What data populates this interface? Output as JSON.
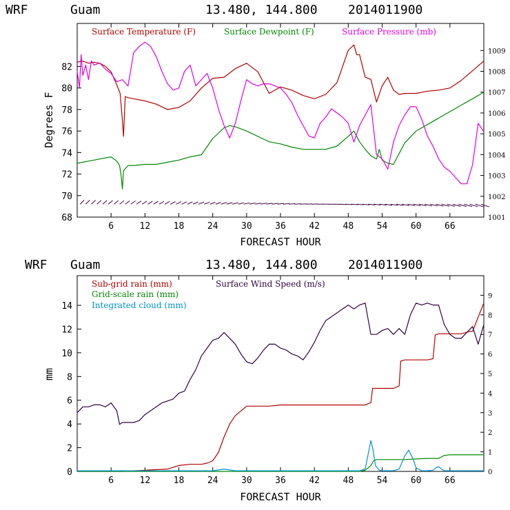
{
  "chart_data": [
    {
      "type": "line",
      "header": {
        "model": "WRF",
        "location": "Guam",
        "coords": "13.480, 144.800",
        "init": "2014011900"
      },
      "xlabel": "FORECAST HOUR",
      "ylabel": "Degrees F",
      "xlim": [
        0,
        72
      ],
      "ylim": [
        68,
        86
      ],
      "y2lim": [
        1001,
        1010.3
      ],
      "x_ticks": [
        6,
        12,
        18,
        24,
        30,
        36,
        42,
        48,
        54,
        60,
        66
      ],
      "x_tick_labels": [
        "6",
        "12",
        "18",
        "24",
        "30",
        "36",
        "42",
        "48",
        "54",
        "60",
        "66"
      ],
      "y_ticks": [
        68,
        70,
        72,
        74,
        76,
        78,
        80,
        82
      ],
      "y_tick_labels": [
        "68",
        "70",
        "72",
        "74",
        "76",
        "78",
        "80",
        "82"
      ],
      "y2_ticks": [
        1001,
        1002,
        1003,
        1004,
        1005,
        1006,
        1007,
        1008,
        1009
      ],
      "y2_tick_labels": [
        "1001",
        "1002",
        "1003",
        "1004",
        "1005",
        "1006",
        "1007",
        "1008",
        "1009"
      ],
      "series": [
        {
          "name": "Surface Temperature (F)",
          "color": "#b00000",
          "axis": "left",
          "x": [
            0,
            1,
            2,
            3,
            4,
            5,
            6,
            7,
            7.6,
            8,
            8.2,
            8.5,
            9,
            10,
            12,
            14,
            16,
            18,
            20,
            22,
            24,
            26,
            28,
            30,
            32,
            34,
            36,
            38,
            40,
            42,
            44,
            46,
            48,
            49,
            49.5,
            50,
            51,
            52,
            53,
            54,
            55,
            56,
            57,
            58,
            60,
            62,
            64,
            66,
            68,
            70,
            72
          ],
          "y": [
            82.4,
            82.5,
            82.3,
            82.4,
            82.3,
            82.0,
            81.5,
            80.3,
            79.5,
            77.0,
            75.5,
            79.2,
            79.1,
            79.0,
            78.8,
            78.5,
            78.0,
            78.2,
            78.8,
            80.0,
            80.9,
            81.0,
            81.8,
            82.3,
            81.5,
            79.5,
            80.1,
            79.8,
            79.3,
            79.0,
            79.4,
            80.5,
            83.5,
            84.0,
            83.1,
            83.1,
            81.0,
            80.8,
            78.7,
            80.2,
            81.0,
            79.8,
            79.4,
            79.5,
            79.5,
            79.7,
            79.8,
            80.0,
            80.7,
            81.6,
            82.5
          ]
        },
        {
          "name": "Surface Dewpoint (F)",
          "color": "#008800",
          "axis": "left",
          "x": [
            0,
            2,
            4,
            6,
            7,
            7.5,
            7.8,
            8,
            8.2,
            8.5,
            9,
            10,
            12,
            14,
            16,
            18,
            20,
            22,
            24,
            26,
            27,
            28,
            30,
            32,
            34,
            36,
            38,
            40,
            42,
            44,
            46,
            48,
            49,
            50,
            51,
            52,
            53,
            53.5,
            54,
            55,
            56,
            58,
            60,
            62,
            64,
            66,
            68,
            70,
            72
          ],
          "y": [
            73.0,
            73.2,
            73.4,
            73.6,
            73.2,
            72.8,
            71.8,
            70.6,
            72.3,
            72.5,
            72.8,
            72.8,
            72.9,
            72.9,
            73.1,
            73.3,
            73.6,
            73.8,
            75.3,
            76.3,
            76.5,
            76.4,
            76.0,
            75.5,
            75.0,
            74.8,
            74.5,
            74.3,
            74.3,
            74.3,
            74.6,
            75.5,
            76.0,
            75.0,
            74.3,
            73.7,
            73.4,
            74.3,
            73.3,
            73.0,
            72.9,
            74.9,
            76.0,
            76.6,
            77.2,
            77.8,
            78.4,
            79.0,
            79.6
          ]
        },
        {
          "name": "Surface Pressure (mb)",
          "color": "#e000e0",
          "axis": "right",
          "x": [
            0,
            0.4,
            0.7,
            1,
            1.5,
            2,
            2.5,
            3,
            4,
            5,
            6,
            7,
            8,
            9,
            10,
            11,
            12,
            13,
            14,
            15,
            16,
            17,
            18,
            19,
            20,
            21,
            22,
            23,
            24,
            25,
            26,
            27,
            28,
            29,
            30,
            31,
            32,
            33,
            34,
            35,
            36,
            37,
            38,
            39,
            40,
            41,
            42,
            43,
            44,
            45,
            46,
            47,
            48,
            49,
            50,
            51,
            52,
            53,
            54,
            55,
            56,
            57,
            58,
            59,
            60,
            61,
            62,
            63,
            64,
            65,
            66,
            67,
            68,
            69,
            70,
            71,
            72
          ],
          "y": [
            1008.0,
            1007.2,
            1008.8,
            1007.8,
            1008.3,
            1007.6,
            1008.5,
            1008.3,
            1008.4,
            1008.1,
            1007.9,
            1007.5,
            1007.6,
            1007.3,
            1008.9,
            1009.2,
            1009.4,
            1009.2,
            1008.7,
            1008.0,
            1007.4,
            1007.1,
            1007.2,
            1008.0,
            1008.3,
            1007.3,
            1007.6,
            1007.9,
            1007.2,
            1006.2,
            1005.4,
            1004.8,
            1005.5,
            1006.6,
            1007.6,
            1007.4,
            1007.3,
            1007.4,
            1007.4,
            1007.3,
            1007.2,
            1006.9,
            1006.5,
            1005.9,
            1005.4,
            1004.9,
            1004.8,
            1005.5,
            1005.8,
            1006.2,
            1006.0,
            1005.8,
            1005.5,
            1004.6,
            1005.4,
            1005.9,
            1006.4,
            1004.0,
            1003.8,
            1003.3,
            1004.6,
            1005.4,
            1005.9,
            1006.3,
            1006.3,
            1005.7,
            1004.9,
            1004.4,
            1003.8,
            1003.4,
            1003.2,
            1002.9,
            1002.6,
            1002.6,
            1003.5,
            1005.5,
            1005.1
          ]
        }
      ],
      "wind_barb_strip": {
        "y_value": 69.2,
        "x_start": 0.5,
        "x_end": 72,
        "color": "#400040"
      },
      "legend_placement": "top, inside plot"
    },
    {
      "type": "line",
      "header": {
        "model": "WRF",
        "location": "Guam",
        "coords": "13.480, 144.800",
        "init": "2014011900"
      },
      "xlabel": "FORECAST HOUR",
      "ylabel": "mm",
      "xlim": [
        0,
        72
      ],
      "ylim": [
        0,
        16.5
      ],
      "y2lim": [
        0,
        10
      ],
      "x_ticks": [
        6,
        12,
        18,
        24,
        30,
        36,
        42,
        48,
        54,
        60,
        66
      ],
      "x_tick_labels": [
        "6",
        "12",
        "18",
        "24",
        "30",
        "36",
        "42",
        "48",
        "54",
        "60",
        "66"
      ],
      "y_ticks": [
        0,
        2,
        4,
        6,
        8,
        10,
        12,
        14
      ],
      "y_tick_labels": [
        "0",
        "2",
        "4",
        "6",
        "8",
        "10",
        "12",
        "14"
      ],
      "y2_ticks": [
        0,
        1,
        2,
        3,
        4,
        5,
        6,
        7,
        8,
        9
      ],
      "y2_tick_labels": [
        "0",
        "1",
        "2",
        "3",
        "4",
        "5",
        "6",
        "7",
        "8",
        "9"
      ],
      "series": [
        {
          "name": "Sub-grid rain (mm)",
          "color": "#b00000",
          "axis": "left",
          "x": [
            0,
            8,
            10,
            12,
            14,
            16,
            18,
            20,
            22,
            23,
            24,
            25,
            26,
            27,
            28,
            29,
            30,
            32,
            34,
            36,
            38,
            40,
            42,
            44,
            46,
            48,
            50,
            51,
            52,
            52.3,
            54,
            56,
            57,
            57.3,
            58,
            60,
            62,
            63,
            63.4,
            64,
            66,
            68,
            69.5,
            70,
            71,
            72
          ],
          "y": [
            0,
            0,
            0.05,
            0.1,
            0.15,
            0.2,
            0.5,
            0.6,
            0.6,
            0.7,
            0.9,
            1.6,
            2.9,
            4.0,
            4.7,
            5.1,
            5.5,
            5.5,
            5.5,
            5.6,
            5.6,
            5.6,
            5.6,
            5.6,
            5.6,
            5.6,
            5.6,
            5.6,
            5.8,
            7.0,
            7.0,
            7.0,
            7.2,
            9.3,
            9.4,
            9.4,
            9.4,
            9.5,
            11.5,
            11.6,
            11.6,
            11.6,
            11.8,
            11.8,
            13.0,
            14.2
          ]
        },
        {
          "name": "Grid-scale rain (mm)",
          "color": "#008800",
          "axis": "left",
          "x": [
            0,
            50,
            51,
            52,
            52.5,
            53,
            54,
            56,
            58,
            60,
            62,
            64,
            65,
            66,
            68,
            70,
            72
          ],
          "y": [
            0,
            0,
            0.1,
            0.5,
            0.9,
            1.0,
            1.0,
            1.0,
            1.0,
            1.05,
            1.1,
            1.1,
            1.35,
            1.4,
            1.4,
            1.4,
            1.4
          ]
        },
        {
          "name": "Integrated cloud (mm)",
          "color": "#0090d0",
          "axis": "left",
          "x": [
            0,
            24,
            26,
            28,
            30,
            50,
            51,
            51.5,
            52,
            52.4,
            52.8,
            53.5,
            54,
            56,
            57,
            58,
            58.7,
            59.5,
            60,
            61,
            62,
            63,
            63.5,
            64,
            64.5,
            65,
            66,
            68,
            70,
            72
          ],
          "y": [
            0.05,
            0.05,
            0.2,
            0.05,
            0.05,
            0.05,
            0.2,
            1.4,
            2.6,
            1.8,
            0.5,
            0.1,
            0.05,
            0.05,
            0.2,
            1.3,
            1.8,
            1.0,
            0.3,
            0.05,
            0.05,
            0.1,
            0.3,
            0.4,
            0.2,
            0.05,
            0.05,
            0.05,
            0.05,
            0.05
          ]
        },
        {
          "name": "Surface Wind Speed (m/s)",
          "color": "#300040",
          "axis": "right",
          "x": [
            0,
            1,
            2,
            3,
            4,
            5,
            6,
            7,
            7.5,
            8,
            9,
            10,
            11,
            12,
            13,
            14,
            15,
            16,
            17,
            18,
            19,
            20,
            21,
            22,
            23,
            24,
            25,
            26,
            27,
            28,
            29,
            30,
            31,
            32,
            33,
            34,
            35,
            36,
            37,
            38,
            39,
            40,
            41,
            42,
            43,
            44,
            45,
            46,
            47,
            48,
            49,
            50,
            51,
            52,
            53,
            54,
            55,
            56,
            57,
            58,
            59,
            60,
            61,
            62,
            63,
            64,
            65,
            66,
            67,
            68,
            69,
            70,
            71,
            72
          ],
          "y": [
            3.0,
            3.3,
            3.3,
            3.4,
            3.4,
            3.3,
            3.5,
            3.1,
            2.4,
            2.5,
            2.5,
            2.5,
            2.6,
            2.9,
            3.1,
            3.3,
            3.5,
            3.6,
            3.7,
            4.0,
            4.1,
            4.7,
            5.2,
            5.9,
            6.3,
            6.7,
            6.8,
            7.1,
            6.8,
            6.5,
            6.0,
            5.6,
            5.5,
            5.8,
            6.2,
            6.5,
            6.5,
            6.3,
            6.2,
            6.0,
            5.9,
            5.7,
            6.1,
            6.6,
            7.2,
            7.7,
            7.9,
            8.1,
            8.3,
            8.5,
            8.3,
            8.5,
            8.6,
            7.0,
            7.0,
            7.2,
            7.3,
            7.0,
            7.3,
            7.0,
            8.0,
            8.6,
            8.5,
            8.6,
            8.5,
            8.5,
            7.5,
            7.0,
            6.8,
            6.8,
            7.1,
            7.4,
            6.5,
            7.5
          ]
        }
      ],
      "legend_placement": "top-left, inside plot"
    }
  ]
}
